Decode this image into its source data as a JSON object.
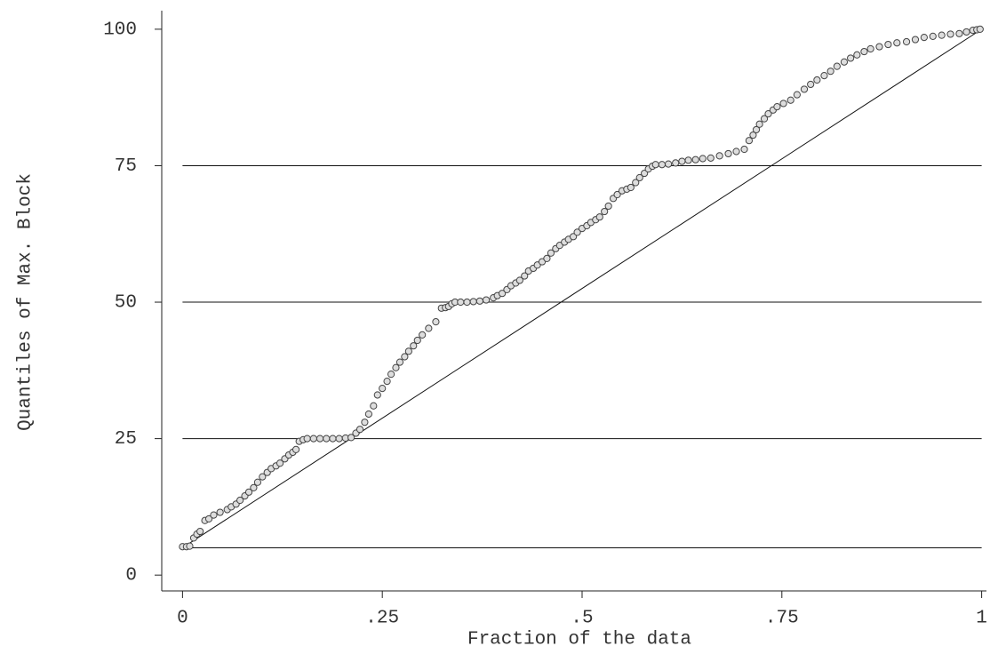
{
  "chart_data": {
    "type": "scatter",
    "xlabel": "Fraction of the data",
    "ylabel": "Quantiles of Max. Block",
    "xlim": [
      -0.026,
      1.006
    ],
    "ylim": [
      -2.9,
      103.4
    ],
    "xticks": [
      0,
      {
        "value": 0.25,
        "label": ".25"
      },
      {
        "value": 0.5,
        "label": ".5"
      },
      {
        "value": 0.75,
        "label": ".75"
      },
      1
    ],
    "yticks": [
      0,
      25,
      50,
      75,
      100
    ],
    "ylines": [
      5,
      25,
      50,
      75
    ],
    "reference_line": {
      "x": [
        0,
        1
      ],
      "values": [
        5,
        100
      ]
    },
    "marker_color": "#444",
    "line_color": "#111",
    "x": [
      0,
      0.005,
      0.009,
      0.014,
      0.018,
      0.022,
      0.028,
      0.033,
      0.039,
      0.047,
      0.056,
      0.061,
      0.067,
      0.072,
      0.078,
      0.083,
      0.089,
      0.094,
      0.1,
      0.106,
      0.111,
      0.117,
      0.122,
      0.128,
      0.133,
      0.138,
      0.142,
      0.146,
      0.151,
      0.156,
      0.164,
      0.172,
      0.18,
      0.188,
      0.196,
      0.204,
      0.211,
      0.217,
      0.222,
      0.228,
      0.233,
      0.239,
      0.244,
      0.25,
      0.256,
      0.261,
      0.267,
      0.272,
      0.278,
      0.283,
      0.289,
      0.294,
      0.3,
      0.308,
      0.317,
      0.324,
      0.329,
      0.333,
      0.337,
      0.341,
      0.348,
      0.356,
      0.364,
      0.372,
      0.38,
      0.389,
      0.394,
      0.4,
      0.406,
      0.411,
      0.417,
      0.422,
      0.428,
      0.433,
      0.439,
      0.444,
      0.45,
      0.456,
      0.461,
      0.467,
      0.472,
      0.478,
      0.483,
      0.489,
      0.494,
      0.5,
      0.506,
      0.511,
      0.517,
      0.522,
      0.528,
      0.533,
      0.539,
      0.544,
      0.55,
      0.556,
      0.561,
      0.567,
      0.572,
      0.578,
      0.583,
      0.588,
      0.592,
      0.6,
      0.608,
      0.617,
      0.625,
      0.633,
      0.642,
      0.651,
      0.661,
      0.672,
      0.683,
      0.693,
      0.703,
      0.709,
      0.714,
      0.718,
      0.722,
      0.728,
      0.733,
      0.739,
      0.744,
      0.752,
      0.761,
      0.769,
      0.778,
      0.786,
      0.794,
      0.803,
      0.811,
      0.819,
      0.828,
      0.836,
      0.844,
      0.853,
      0.861,
      0.872,
      0.883,
      0.894,
      0.906,
      0.917,
      0.928,
      0.939,
      0.95,
      0.961,
      0.972,
      0.981,
      0.989,
      0.994,
      0.998
    ],
    "values": [
      5.2,
      5.2,
      5.3,
      6.8,
      7.5,
      8,
      10,
      10.3,
      11,
      11.5,
      12,
      12.5,
      13,
      13.7,
      14.5,
      15.2,
      16,
      17,
      18,
      18.8,
      19.5,
      20,
      20.5,
      21.3,
      22,
      22.5,
      23,
      24.5,
      24.8,
      25,
      25,
      25,
      25,
      25,
      25,
      25.1,
      25.2,
      26,
      26.7,
      28,
      29.5,
      31,
      33,
      34.2,
      35.5,
      36.8,
      38,
      39,
      40,
      41,
      42,
      43,
      44,
      45.2,
      46.4,
      48.9,
      49,
      49.2,
      49.7,
      50,
      50,
      50,
      50.1,
      50.2,
      50.4,
      50.8,
      51.2,
      51.6,
      52.3,
      53,
      53.5,
      54,
      54.8,
      55.7,
      56.2,
      56.8,
      57.4,
      58,
      59,
      59.8,
      60.4,
      61,
      61.5,
      62,
      62.8,
      63.5,
      64,
      64.6,
      65.1,
      65.6,
      66.6,
      67.6,
      69,
      69.7,
      70.4,
      70.7,
      71,
      71.9,
      72.8,
      73.6,
      74.4,
      74.9,
      75.2,
      75.2,
      75.3,
      75.5,
      75.8,
      76,
      76.1,
      76.3,
      76.4,
      76.8,
      77.2,
      77.6,
      78,
      79.6,
      80.6,
      81.6,
      82.6,
      83.6,
      84.5,
      85.2,
      85.8,
      86.4,
      87,
      88,
      89,
      89.9,
      90.7,
      91.5,
      92.3,
      93.2,
      94,
      94.7,
      95.3,
      95.9,
      96.4,
      96.8,
      97.2,
      97.5,
      97.7,
      98.1,
      98.5,
      98.7,
      98.9,
      99.1,
      99.2,
      99.5,
      99.8,
      99.9,
      100
    ]
  }
}
